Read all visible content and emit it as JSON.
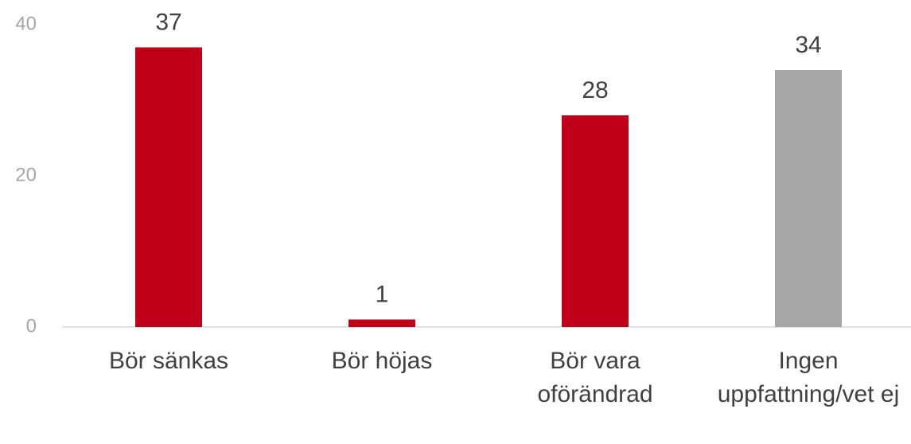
{
  "chart_data": {
    "type": "bar",
    "categories": [
      "Bör sänkas",
      "Bör höjas",
      "Bör vara oförändrad",
      "Ingen uppfattning/vet ej"
    ],
    "values": [
      37,
      1,
      28,
      34
    ],
    "colors": [
      "#c00018",
      "#c00018",
      "#c00018",
      "#a6a6a6"
    ],
    "ylim": [
      0,
      40
    ],
    "yticks": [
      0,
      20,
      40
    ],
    "grid": false
  }
}
